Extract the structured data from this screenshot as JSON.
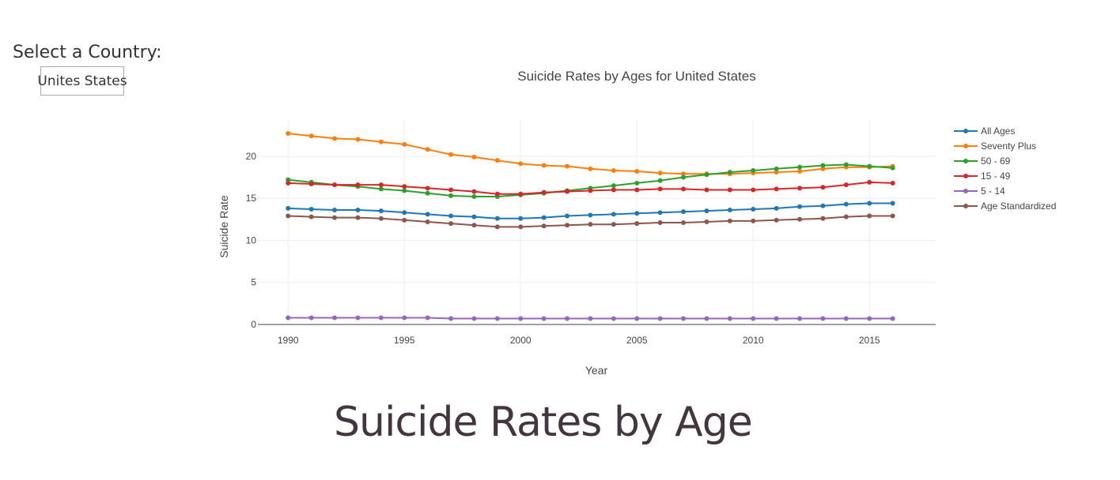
{
  "selector": {
    "label": "Select a Country:",
    "value": "Unites States"
  },
  "heading": "Suicide Rates by Age",
  "chart_data": {
    "type": "line",
    "title": "Suicide Rates by Ages for United States",
    "xlabel": "Year",
    "ylabel": "Suicide Rate",
    "xlim": [
      1988.7,
      1990.0
    ],
    "ylim": [
      0,
      24.3
    ],
    "x_ticks": [
      1990,
      1995,
      2000,
      2005,
      2010,
      2015
    ],
    "y_ticks": [
      0,
      5,
      10,
      15,
      20
    ],
    "grid": true,
    "legend": "top-right",
    "x": [
      1990,
      1991,
      1992,
      1993,
      1994,
      1995,
      1996,
      1997,
      1998,
      1999,
      2000,
      2001,
      2002,
      2003,
      2004,
      2005,
      2006,
      2007,
      2008,
      2009,
      2010,
      2011,
      2012,
      2013,
      2014,
      2015,
      2016
    ],
    "series": [
      {
        "name": "All Ages",
        "color": "#1f77b4",
        "values": [
          13.8,
          13.7,
          13.6,
          13.6,
          13.5,
          13.3,
          13.1,
          12.9,
          12.8,
          12.6,
          12.6,
          12.7,
          12.9,
          13.0,
          13.1,
          13.2,
          13.3,
          13.4,
          13.5,
          13.6,
          13.7,
          13.8,
          14.0,
          14.1,
          14.3,
          14.4,
          14.4
        ]
      },
      {
        "name": "Seventy Plus",
        "color": "#ff7f0e",
        "values": [
          22.7,
          22.4,
          22.1,
          22.0,
          21.7,
          21.4,
          20.8,
          20.2,
          19.9,
          19.5,
          19.1,
          18.9,
          18.8,
          18.5,
          18.3,
          18.2,
          18.0,
          17.9,
          17.9,
          17.9,
          18.0,
          18.1,
          18.2,
          18.5,
          18.7,
          18.7,
          18.8
        ]
      },
      {
        "name": "50 - 69",
        "color": "#2ca02c",
        "values": [
          17.2,
          16.9,
          16.6,
          16.4,
          16.1,
          15.9,
          15.6,
          15.3,
          15.2,
          15.2,
          15.4,
          15.6,
          15.9,
          16.2,
          16.5,
          16.8,
          17.1,
          17.5,
          17.8,
          18.1,
          18.3,
          18.5,
          18.7,
          18.9,
          19.0,
          18.8,
          18.6
        ]
      },
      {
        "name": "15 - 49",
        "color": "#d62728",
        "values": [
          16.8,
          16.7,
          16.6,
          16.6,
          16.6,
          16.4,
          16.2,
          16.0,
          15.8,
          15.5,
          15.5,
          15.7,
          15.8,
          15.9,
          16.0,
          16.0,
          16.1,
          16.1,
          16.0,
          16.0,
          16.0,
          16.1,
          16.2,
          16.3,
          16.6,
          16.9,
          16.8
        ]
      },
      {
        "name": "5 - 14",
        "color": "#9467bd",
        "values": [
          0.8,
          0.8,
          0.8,
          0.8,
          0.8,
          0.8,
          0.8,
          0.7,
          0.7,
          0.7,
          0.7,
          0.7,
          0.7,
          0.7,
          0.7,
          0.7,
          0.7,
          0.7,
          0.7,
          0.7,
          0.7,
          0.7,
          0.7,
          0.7,
          0.7,
          0.7,
          0.7
        ]
      },
      {
        "name": "Age Standardized",
        "color": "#8c564b",
        "values": [
          12.9,
          12.8,
          12.7,
          12.7,
          12.6,
          12.4,
          12.2,
          12.0,
          11.8,
          11.6,
          11.6,
          11.7,
          11.8,
          11.9,
          11.9,
          12.0,
          12.1,
          12.1,
          12.2,
          12.3,
          12.3,
          12.4,
          12.5,
          12.6,
          12.8,
          12.9,
          12.9
        ]
      }
    ]
  }
}
